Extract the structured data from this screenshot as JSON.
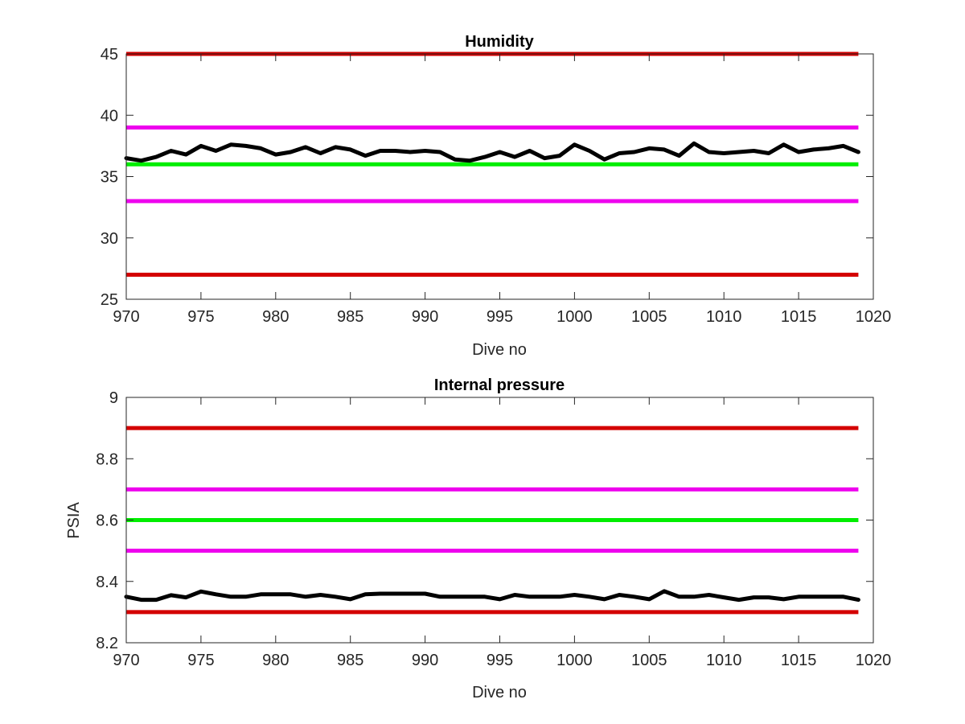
{
  "chart_data": [
    {
      "type": "line",
      "title": "Humidity",
      "xlabel": "Dive no",
      "ylabel": "",
      "xlim": [
        970,
        1020
      ],
      "ylim": [
        25,
        45
      ],
      "xticks": [
        970,
        975,
        980,
        985,
        990,
        995,
        1000,
        1005,
        1010,
        1015,
        1020
      ],
      "yticks": [
        25,
        30,
        35,
        40,
        45
      ],
      "grid": false,
      "limit_lines": [
        {
          "y": 45,
          "color": "#d40000"
        },
        {
          "y": 39,
          "color": "#ee00ee"
        },
        {
          "y": 36,
          "color": "#00ee00"
        },
        {
          "y": 33,
          "color": "#ee00ee"
        },
        {
          "y": 27,
          "color": "#d40000"
        }
      ],
      "series": [
        {
          "color": "#000000",
          "x": [
            970,
            971,
            972,
            973,
            974,
            975,
            976,
            977,
            978,
            979,
            980,
            981,
            982,
            983,
            984,
            985,
            986,
            987,
            988,
            989,
            990,
            991,
            992,
            993,
            994,
            995,
            996,
            997,
            998,
            999,
            1000,
            1001,
            1002,
            1003,
            1004,
            1005,
            1006,
            1007,
            1008,
            1009,
            1010,
            1011,
            1012,
            1013,
            1014,
            1015,
            1016,
            1017,
            1018,
            1019
          ],
          "values": [
            36.5,
            36.3,
            36.6,
            37.1,
            36.8,
            37.5,
            37.1,
            37.6,
            37.5,
            37.3,
            36.8,
            37.0,
            37.4,
            36.9,
            37.4,
            37.2,
            36.7,
            37.1,
            37.1,
            37.0,
            37.1,
            37.0,
            36.4,
            36.3,
            36.6,
            37.0,
            36.6,
            37.1,
            36.5,
            36.7,
            37.6,
            37.1,
            36.4,
            36.9,
            37.0,
            37.3,
            37.2,
            36.7,
            37.7,
            37.0,
            36.9,
            37.0,
            37.1,
            36.9,
            37.6,
            37.0,
            37.2,
            37.3,
            37.5,
            37.0
          ]
        }
      ]
    },
    {
      "type": "line",
      "title": "Internal pressure",
      "xlabel": "Dive no",
      "ylabel": "PSIA",
      "xlim": [
        970,
        1020
      ],
      "ylim": [
        8.2,
        9
      ],
      "xticks": [
        970,
        975,
        980,
        985,
        990,
        995,
        1000,
        1005,
        1010,
        1015,
        1020
      ],
      "yticks": [
        8.2,
        8.4,
        8.6,
        8.8,
        9
      ],
      "grid": false,
      "limit_lines": [
        {
          "y": 8.9,
          "color": "#d40000"
        },
        {
          "y": 8.7,
          "color": "#ee00ee"
        },
        {
          "y": 8.6,
          "color": "#00ee00"
        },
        {
          "y": 8.5,
          "color": "#ee00ee"
        },
        {
          "y": 8.3,
          "color": "#d40000"
        }
      ],
      "series": [
        {
          "color": "#000000",
          "x": [
            970,
            971,
            972,
            973,
            974,
            975,
            976,
            977,
            978,
            979,
            980,
            981,
            982,
            983,
            984,
            985,
            986,
            987,
            988,
            989,
            990,
            991,
            992,
            993,
            994,
            995,
            996,
            997,
            998,
            999,
            1000,
            1001,
            1002,
            1003,
            1004,
            1005,
            1006,
            1007,
            1008,
            1009,
            1010,
            1011,
            1012,
            1013,
            1014,
            1015,
            1016,
            1017,
            1018,
            1019
          ],
          "values": [
            8.35,
            8.34,
            8.34,
            8.355,
            8.348,
            8.367,
            8.358,
            8.35,
            8.35,
            8.358,
            8.358,
            8.358,
            8.35,
            8.356,
            8.35,
            8.342,
            8.358,
            8.36,
            8.36,
            8.36,
            8.36,
            8.35,
            8.35,
            8.35,
            8.35,
            8.342,
            8.356,
            8.35,
            8.35,
            8.35,
            8.356,
            8.35,
            8.342,
            8.356,
            8.35,
            8.342,
            8.368,
            8.35,
            8.35,
            8.356,
            8.348,
            8.34,
            8.348,
            8.348,
            8.342,
            8.35,
            8.35,
            8.35,
            8.35,
            8.34
          ]
        }
      ]
    }
  ]
}
